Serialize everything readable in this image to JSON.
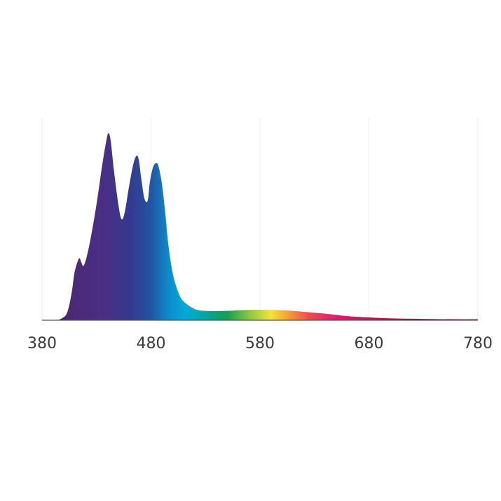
{
  "chart_data": {
    "type": "area",
    "title": "",
    "xlabel": "",
    "ylabel": "",
    "xlim": [
      380,
      780
    ],
    "ylim": [
      0,
      1
    ],
    "xticks": [
      {
        "value": 380,
        "label": "380"
      },
      {
        "value": 480,
        "label": "480"
      },
      {
        "value": 580,
        "label": "580"
      },
      {
        "value": 680,
        "label": "680"
      },
      {
        "value": 780,
        "label": "780"
      }
    ],
    "grid": "vertical",
    "legend": "none",
    "series": [
      {
        "x": [
          380,
          392,
          398,
          403,
          407,
          410,
          414,
          416,
          418,
          421,
          425,
          430,
          435,
          439,
          441,
          443,
          446,
          450,
          453,
          456,
          460,
          464,
          467,
          469,
          471,
          474,
          477,
          479,
          482,
          485,
          487,
          490,
          493,
          496,
          500,
          505,
          510,
          520,
          530,
          550,
          570,
          590,
          610,
          620,
          640,
          660,
          680,
          700,
          720,
          740,
          760,
          780
        ],
        "y": [
          0.0,
          0.0,
          0.01,
          0.04,
          0.14,
          0.26,
          0.33,
          0.31,
          0.29,
          0.34,
          0.45,
          0.62,
          0.82,
          0.96,
          1.0,
          0.96,
          0.8,
          0.62,
          0.54,
          0.58,
          0.72,
          0.84,
          0.88,
          0.85,
          0.76,
          0.65,
          0.64,
          0.74,
          0.82,
          0.84,
          0.82,
          0.73,
          0.58,
          0.4,
          0.25,
          0.15,
          0.1,
          0.06,
          0.05,
          0.05,
          0.055,
          0.055,
          0.05,
          0.045,
          0.035,
          0.022,
          0.015,
          0.01,
          0.008,
          0.006,
          0.005,
          0.005
        ]
      }
    ],
    "colors": {
      "gradient": [
        {
          "nm": 380,
          "color": "#3a1f4e"
        },
        {
          "nm": 410,
          "color": "#4b2a78"
        },
        {
          "nm": 440,
          "color": "#4a2f86"
        },
        {
          "nm": 460,
          "color": "#33398f"
        },
        {
          "nm": 480,
          "color": "#2354a3"
        },
        {
          "nm": 495,
          "color": "#0e88c9"
        },
        {
          "nm": 510,
          "color": "#00a9d8"
        },
        {
          "nm": 530,
          "color": "#00a8a0"
        },
        {
          "nm": 550,
          "color": "#12a050"
        },
        {
          "nm": 570,
          "color": "#8cc63f"
        },
        {
          "nm": 590,
          "color": "#f2e33a"
        },
        {
          "nm": 605,
          "color": "#f7a233"
        },
        {
          "nm": 625,
          "color": "#ef4a4e"
        },
        {
          "nm": 650,
          "color": "#e6196e"
        },
        {
          "nm": 700,
          "color": "#b10f3e"
        },
        {
          "nm": 780,
          "color": "#7a0a2a"
        }
      ],
      "grid": "#eeeeee",
      "baseline": "#555555",
      "tick_text": "#3a3a3a"
    }
  }
}
